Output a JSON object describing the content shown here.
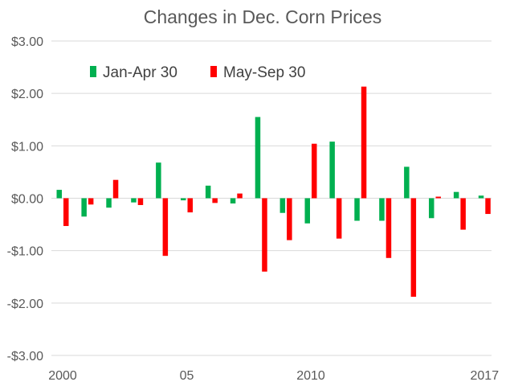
{
  "chart_data": {
    "type": "bar",
    "title": "Changes in Dec. Corn Prices",
    "xlabel": "",
    "ylabel": "",
    "ylim": [
      -3,
      3
    ],
    "y_ticks": [
      3,
      2,
      1,
      0,
      -1,
      -2,
      -3
    ],
    "y_tick_labels": [
      "$3.00",
      "$2.00",
      "$1.00",
      "$0.00",
      "-$1.00",
      "-$2.00",
      "-$3.00"
    ],
    "categories": [
      2000,
      2001,
      2002,
      2003,
      2004,
      2005,
      2006,
      2007,
      2008,
      2009,
      2010,
      2011,
      2012,
      2013,
      2014,
      2015,
      2016,
      2017
    ],
    "x_tick_labels": [
      {
        "year": 2000,
        "label": "2000"
      },
      {
        "year": 2005,
        "label": "05"
      },
      {
        "year": 2010,
        "label": "2010"
      },
      {
        "year": 2017,
        "label": "2017"
      }
    ],
    "legend_position": "top-left",
    "grid": true,
    "series": [
      {
        "name": "Jan-Apr 30",
        "color": "#00b050",
        "values": [
          0.16,
          -0.35,
          -0.18,
          -0.08,
          0.68,
          -0.04,
          0.24,
          -0.1,
          1.55,
          -0.28,
          -0.48,
          1.08,
          -0.43,
          -0.43,
          0.6,
          -0.38,
          0.12,
          0.05
        ]
      },
      {
        "name": "May-Sep 30",
        "color": "#ff0000",
        "values": [
          -0.53,
          -0.12,
          0.35,
          -0.13,
          -1.1,
          -0.27,
          -0.09,
          0.09,
          -1.4,
          -0.8,
          1.04,
          -0.77,
          2.13,
          -1.14,
          -1.88,
          0.03,
          -0.6,
          -0.3
        ]
      }
    ]
  }
}
